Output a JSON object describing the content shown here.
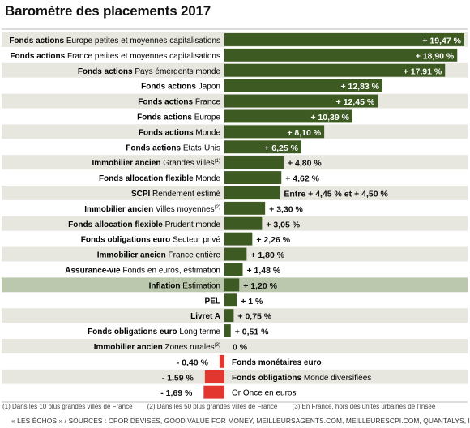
{
  "title": "Baromètre des placements 2017",
  "chart_data": {
    "type": "bar",
    "orientation": "horizontal",
    "title": "Baromètre des placements 2017",
    "xlabel": "",
    "ylabel": "",
    "xlim": [
      -1.69,
      19.47
    ],
    "unit": "%",
    "colors": {
      "positive": "#3d5a22",
      "negative": "#e2362f",
      "row_light": "#e7e7e0",
      "row_white": "#ffffff",
      "row_highlight": "#bcc8ad"
    },
    "bars": [
      {
        "label_bold": "Fonds actions",
        "label_rest": "Europe petites et moyennes capitalisations",
        "value": 19.47,
        "value_label": "+ 19,47 %"
      },
      {
        "label_bold": "Fonds actions",
        "label_rest": "France petites et moyennes capitalisations",
        "value": 18.9,
        "value_label": "+ 18,90 %"
      },
      {
        "label_bold": "Fonds actions",
        "label_rest": "Pays émergents monde",
        "value": 17.91,
        "value_label": "+ 17,91 %"
      },
      {
        "label_bold": "Fonds actions",
        "label_rest": "Japon",
        "value": 12.83,
        "value_label": "+ 12,83 %"
      },
      {
        "label_bold": "Fonds actions",
        "label_rest": "France",
        "value": 12.45,
        "value_label": "+ 12,45 %"
      },
      {
        "label_bold": "Fonds actions",
        "label_rest": "Europe",
        "value": 10.39,
        "value_label": "+ 10,39 %"
      },
      {
        "label_bold": "Fonds actions",
        "label_rest": "Monde",
        "value": 8.1,
        "value_label": "+ 8,10 %"
      },
      {
        "label_bold": "Fonds actions",
        "label_rest": "Etats-Unis",
        "value": 6.25,
        "value_label": "+ 6,25 %"
      },
      {
        "label_bold": "Immobilier ancien",
        "label_rest": "Grandes villes",
        "sup": "(1)",
        "value": 4.8,
        "value_label": "+ 4,80 %"
      },
      {
        "label_bold": "Fonds allocation flexible",
        "label_rest": "Monde",
        "value": 4.62,
        "value_label": "+ 4,62 %"
      },
      {
        "label_bold": "SCPI",
        "label_rest": "Rendement estimé",
        "value": 4.5,
        "value_label": "Entre + 4,45 % et + 4,50 %"
      },
      {
        "label_bold": "Immobilier ancien",
        "label_rest": "Villes moyennes",
        "sup": "(2)",
        "value": 3.3,
        "value_label": "+ 3,30 %"
      },
      {
        "label_bold": "Fonds allocation flexible",
        "label_rest": "Prudent monde",
        "value": 3.05,
        "value_label": "+ 3,05 %"
      },
      {
        "label_bold": "Fonds obligations euro",
        "label_rest": "Secteur privé",
        "value": 2.26,
        "value_label": "+ 2,26 %"
      },
      {
        "label_bold": "Immobilier ancien",
        "label_rest": "France entière",
        "value": 1.8,
        "value_label": "+ 1,80 %"
      },
      {
        "label_bold": "Assurance-vie",
        "label_rest": "Fonds en euros, estimation",
        "value": 1.48,
        "value_label": "+ 1,48 %"
      },
      {
        "label_bold": "Inflation",
        "label_rest": "Estimation",
        "value": 1.2,
        "value_label": "+ 1,20 %",
        "highlight": true
      },
      {
        "label_bold": "PEL",
        "label_rest": "",
        "value": 1.0,
        "value_label": "+ 1 %"
      },
      {
        "label_bold": "Livret A",
        "label_rest": "",
        "value": 0.75,
        "value_label": "+ 0,75 %"
      },
      {
        "label_bold": "Fonds obligations euro",
        "label_rest": "Long terme",
        "value": 0.51,
        "value_label": "+ 0,51 %"
      },
      {
        "label_bold": "Immobilier ancien",
        "label_rest": "Zones rurales",
        "sup": "(3)",
        "value": 0,
        "value_label": "0 %"
      },
      {
        "label_bold": "Fonds monétaires euro",
        "label_rest": "",
        "value": -0.4,
        "value_label": "- 0,40 %"
      },
      {
        "label_bold": "Fonds obligations",
        "label_rest": "Monde diversifiées",
        "value": -1.59,
        "value_label": "- 1,59 %"
      },
      {
        "label_bold": "",
        "label_rest": "Or Once en euros",
        "value": -1.69,
        "value_label": "- 1,69 %"
      }
    ]
  },
  "footnotes": [
    "(1) Dans les 10 plus grandes villes de France",
    "(2) Dans les 50 plus grandes villes de France",
    "(3) En France, hors des unités urbaines de l'Insee"
  ],
  "sources": "« LES ÉCHOS » / SOURCES : CPOR DEVISES, GOOD VALUE FOR MONEY, MEILLEURSAGENTS.COM, MEILLEURESCPI.COM, QUANTALYS, INSEE"
}
